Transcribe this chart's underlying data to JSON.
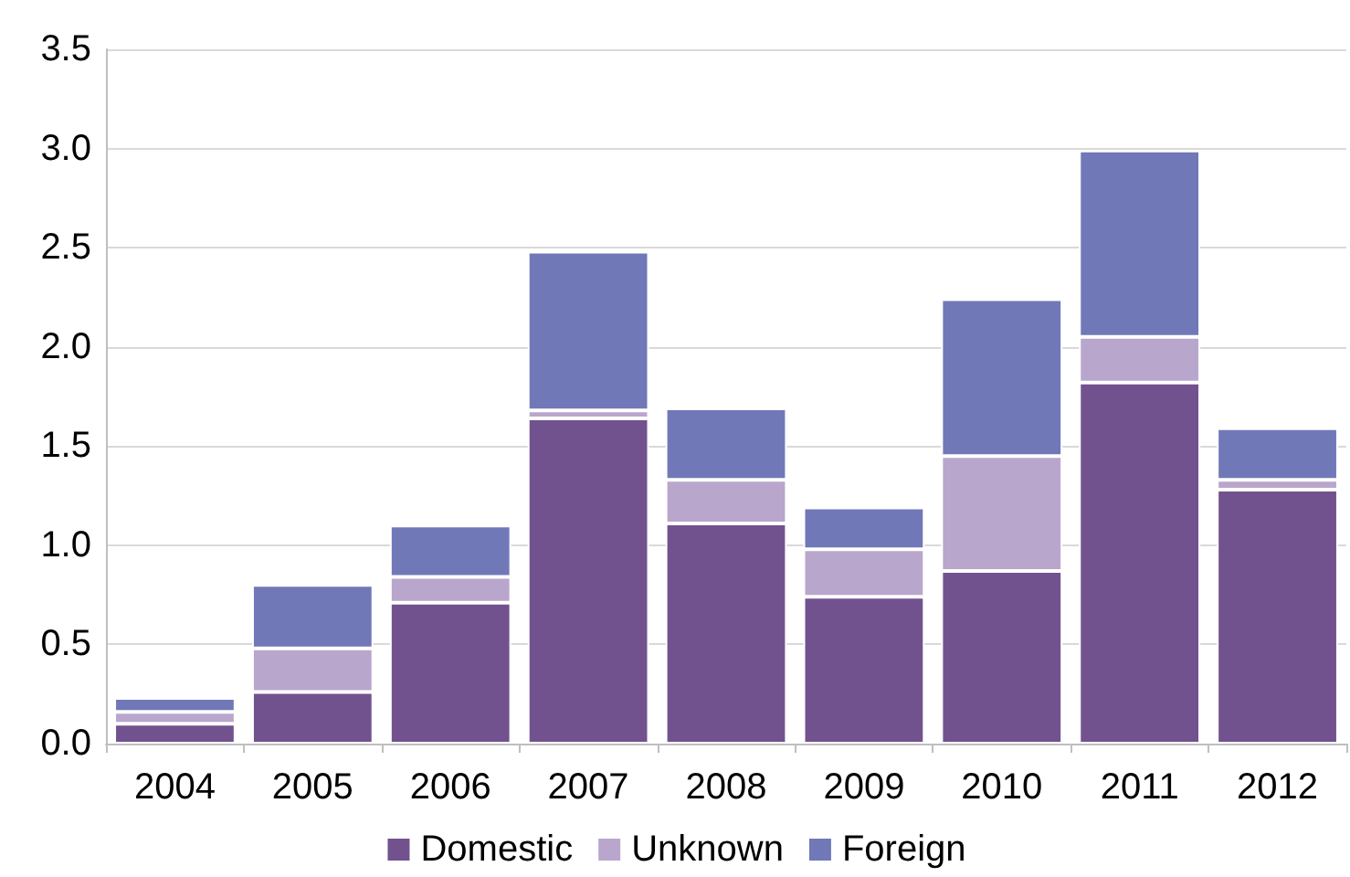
{
  "chart_data": {
    "type": "bar",
    "stacked": true,
    "categories": [
      "2004",
      "2005",
      "2006",
      "2007",
      "2008",
      "2009",
      "2010",
      "2011",
      "2012"
    ],
    "series": [
      {
        "name": "Domestic",
        "color": "#71528f",
        "values": [
          0.1,
          0.26,
          0.71,
          1.64,
          1.11,
          0.74,
          0.87,
          1.82,
          1.28
        ]
      },
      {
        "name": "Unknown",
        "color": "#b9a6cc",
        "values": [
          0.06,
          0.22,
          0.13,
          0.04,
          0.22,
          0.24,
          0.58,
          0.23,
          0.05
        ]
      },
      {
        "name": "Foreign",
        "color": "#7078b8",
        "values": [
          0.07,
          0.32,
          0.26,
          0.8,
          0.36,
          0.21,
          0.79,
          0.94,
          0.26
        ]
      }
    ],
    "ylim": [
      0,
      3.5
    ],
    "yticks": [
      {
        "value": 0,
        "label": "0.0"
      },
      {
        "value": 0.5,
        "label": "0.5"
      },
      {
        "value": 1,
        "label": "1.0"
      },
      {
        "value": 1.5,
        "label": "1.5"
      },
      {
        "value": 2,
        "label": "2.0"
      },
      {
        "value": 2.5,
        "label": "2.5"
      },
      {
        "value": 3,
        "label": "3.0"
      },
      {
        "value": 3.5,
        "label": "3.5"
      }
    ],
    "grid": "y",
    "legend": "bottom"
  }
}
